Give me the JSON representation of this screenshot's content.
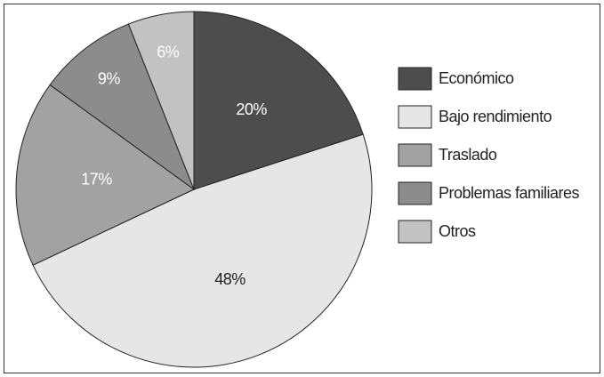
{
  "chart_data": {
    "type": "pie",
    "categories": [
      "Económico",
      "Bajo rendimiento",
      "Traslado",
      "Problemas familiares",
      "Otros"
    ],
    "values": [
      20,
      48,
      17,
      9,
      6
    ],
    "value_labels": [
      "20%",
      "48%",
      "17%",
      "9%",
      "6%"
    ],
    "colors": [
      "#4d4d4d",
      "#e6e6e6",
      "#a2a2a2",
      "#8c8c8c",
      "#c2c2c2"
    ],
    "legend": "right"
  }
}
